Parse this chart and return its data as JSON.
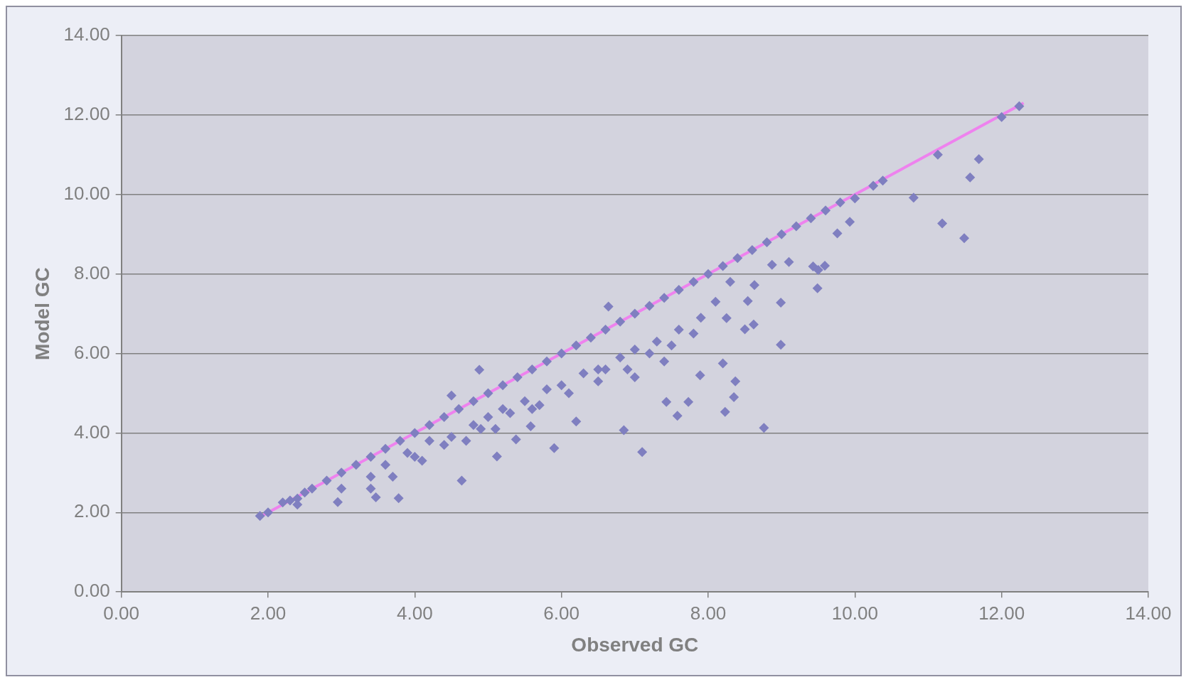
{
  "chart_data": {
    "type": "scatter",
    "xlabel": "Observed GC",
    "ylabel": "Model GC",
    "xlim": [
      0,
      14
    ],
    "ylim": [
      0,
      14
    ],
    "xticks": [
      {
        "value": 0,
        "label": "0.00"
      },
      {
        "value": 2,
        "label": "2.00"
      },
      {
        "value": 4,
        "label": "4.00"
      },
      {
        "value": 6,
        "label": "6.00"
      },
      {
        "value": 8,
        "label": "8.00"
      },
      {
        "value": 10,
        "label": "10.00"
      },
      {
        "value": 12,
        "label": "12.00"
      },
      {
        "value": 14,
        "label": "14.00"
      }
    ],
    "yticks": [
      {
        "value": 0,
        "label": "0.00"
      },
      {
        "value": 2,
        "label": "2.00"
      },
      {
        "value": 4,
        "label": "4.00"
      },
      {
        "value": 6,
        "label": "6.00"
      },
      {
        "value": 8,
        "label": "8.00"
      },
      {
        "value": 10,
        "label": "10.00"
      },
      {
        "value": 12,
        "label": "12.00"
      },
      {
        "value": 14,
        "label": "14.00"
      }
    ],
    "grid": "y",
    "legend": false,
    "series": [
      {
        "type": "line",
        "color": "#ee82ee",
        "marker": "none",
        "x": [
          1.9,
          12.3
        ],
        "values": [
          1.9,
          12.3
        ]
      },
      {
        "color": "#7f7fc0",
        "marker": "diamond",
        "x": [
          1.89,
          2.0,
          2.2,
          2.3,
          2.4,
          2.5,
          2.6,
          2.8,
          3.0,
          3.2,
          3.4,
          3.6,
          3.8,
          4.0,
          4.2,
          4.4,
          4.6,
          4.8,
          5.0,
          5.2,
          5.4,
          5.6,
          5.8,
          6.0,
          6.2,
          6.4,
          6.6,
          6.8,
          7.0,
          7.2,
          7.4,
          7.6,
          7.8,
          8.0,
          8.2,
          8.4,
          8.6,
          8.8,
          9.0,
          9.2,
          9.4,
          9.6,
          9.8,
          10.0,
          10.25,
          10.38,
          12.0,
          12.24,
          11.13,
          11.69,
          11.57,
          10.8,
          11.19,
          11.49,
          9.76,
          9.93,
          9.43,
          9.59,
          9.49,
          8.99,
          8.99,
          8.76,
          8.37,
          8.35,
          8.23,
          8.2,
          8.62,
          8.5,
          7.1,
          6.85,
          5.9,
          7.43,
          7.73,
          7.58,
          7.89,
          4.64,
          3.78,
          2.95,
          3.47,
          6.64,
          4.5,
          4.88,
          5.12,
          5.38,
          5.58,
          6.2,
          8.87,
          8.25,
          8.54,
          8.63,
          2.4,
          3.0,
          3.4,
          3.6,
          3.9,
          4.2,
          4.5,
          4.8,
          5.0,
          5.2,
          5.5,
          5.8,
          6.0,
          6.3,
          6.5,
          6.8,
          7.0,
          7.3,
          7.6,
          7.9,
          8.1,
          4.0,
          4.4,
          4.9,
          5.3,
          5.7,
          6.1,
          6.5,
          6.9,
          7.2,
          7.5,
          7.8,
          3.4,
          3.7,
          4.1,
          4.7,
          5.1,
          5.6,
          6.6,
          7.0,
          7.4,
          8.3,
          9.1,
          9.5
        ],
        "values": [
          1.91,
          2.0,
          2.25,
          2.3,
          2.35,
          2.5,
          2.6,
          2.8,
          3.0,
          3.2,
          3.4,
          3.6,
          3.8,
          4.0,
          4.2,
          4.4,
          4.6,
          4.8,
          5.0,
          5.2,
          5.4,
          5.6,
          5.8,
          6.0,
          6.2,
          6.4,
          6.6,
          6.8,
          7.0,
          7.2,
          7.4,
          7.6,
          7.8,
          8.0,
          8.2,
          8.4,
          8.6,
          8.8,
          9.0,
          9.2,
          9.4,
          9.6,
          9.8,
          9.9,
          10.22,
          10.35,
          11.95,
          12.22,
          11.0,
          10.89,
          10.43,
          9.92,
          9.27,
          8.9,
          9.02,
          9.31,
          8.19,
          8.21,
          7.64,
          7.28,
          6.22,
          4.13,
          5.3,
          4.9,
          4.53,
          5.75,
          6.73,
          6.61,
          3.52,
          4.07,
          3.62,
          4.78,
          4.78,
          4.43,
          5.45,
          2.8,
          2.36,
          2.26,
          2.38,
          7.18,
          4.94,
          5.59,
          3.41,
          3.84,
          4.17,
          4.29,
          8.23,
          6.89,
          7.32,
          7.72,
          2.2,
          2.6,
          2.9,
          3.2,
          3.5,
          3.8,
          3.9,
          4.2,
          4.4,
          4.6,
          4.8,
          5.1,
          5.2,
          5.5,
          5.6,
          5.9,
          6.1,
          6.3,
          6.6,
          6.9,
          7.3,
          3.4,
          3.7,
          4.1,
          4.5,
          4.7,
          5.0,
          5.3,
          5.6,
          6.0,
          6.2,
          6.5,
          2.6,
          2.9,
          3.3,
          3.8,
          4.1,
          4.6,
          5.6,
          5.4,
          5.8,
          7.8,
          8.3,
          8.1
        ]
      }
    ]
  }
}
